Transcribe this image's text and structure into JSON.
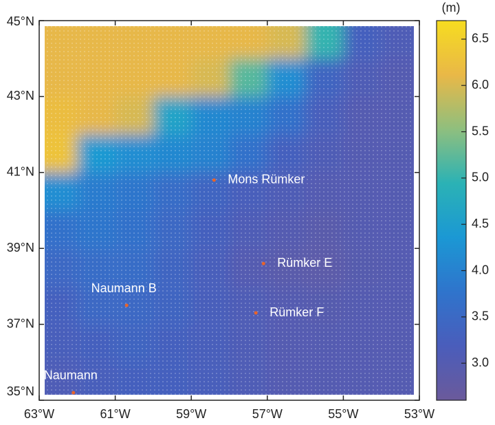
{
  "chart_data": {
    "type": "heatmap",
    "xlim": [
      -63,
      -53
    ],
    "ylim": [
      35,
      45
    ],
    "xticks": [
      {
        "value": -63,
        "label": "63°W"
      },
      {
        "value": -61,
        "label": "61°W"
      },
      {
        "value": -59,
        "label": "59°W"
      },
      {
        "value": -57,
        "label": "57°W"
      },
      {
        "value": -55,
        "label": "55°W"
      },
      {
        "value": -53,
        "label": "53°W"
      }
    ],
    "yticks": [
      {
        "value": 35,
        "label": "35°N"
      },
      {
        "value": 37,
        "label": "37°N"
      },
      {
        "value": 39,
        "label": "39°N"
      },
      {
        "value": 41,
        "label": "41°N"
      },
      {
        "value": 43,
        "label": "43°N"
      },
      {
        "value": 45,
        "label": "45°N"
      }
    ],
    "field": {
      "lons": [
        -62.5,
        -61.5,
        -60.5,
        -59.5,
        -58.5,
        -57.5,
        -56.5,
        -55.5,
        -54.5,
        -53.5
      ],
      "lats": [
        44.5,
        43.5,
        42.5,
        41.5,
        40.5,
        39.5,
        38.5,
        37.5,
        36.5,
        35.5
      ],
      "values": [
        [
          6.1,
          6.1,
          6.1,
          6.1,
          6.1,
          6.1,
          6.0,
          5.0,
          3.3,
          3.1
        ],
        [
          6.1,
          6.1,
          6.1,
          6.1,
          6.0,
          5.2,
          4.2,
          3.4,
          3.1,
          3.0
        ],
        [
          6.2,
          6.1,
          6.0,
          4.6,
          4.1,
          4.0,
          3.7,
          3.2,
          3.0,
          3.0
        ],
        [
          6.3,
          4.4,
          4.2,
          4.1,
          4.0,
          3.7,
          3.3,
          3.1,
          3.0,
          3.0
        ],
        [
          4.2,
          3.9,
          3.8,
          3.6,
          3.4,
          3.2,
          3.1,
          3.0,
          3.0,
          3.0
        ],
        [
          3.7,
          3.8,
          3.7,
          3.5,
          3.3,
          3.1,
          3.0,
          2.9,
          3.0,
          3.0
        ],
        [
          3.5,
          3.6,
          3.6,
          3.4,
          3.2,
          3.0,
          2.9,
          2.85,
          2.95,
          3.0
        ],
        [
          3.3,
          3.5,
          3.5,
          3.4,
          3.2,
          3.1,
          3.0,
          2.95,
          3.0,
          3.0
        ],
        [
          3.2,
          3.3,
          3.4,
          3.3,
          3.2,
          3.1,
          3.0,
          3.0,
          3.0,
          3.0
        ],
        [
          3.1,
          3.2,
          3.3,
          3.3,
          3.2,
          3.1,
          3.0,
          3.0,
          3.0,
          3.0
        ]
      ]
    },
    "colormap": [
      "#6b5a9b",
      "#4a5dbb",
      "#2f74cc",
      "#1b98d4",
      "#2bb2b5",
      "#8fbf7e",
      "#e9b847",
      "#f6dc20"
    ],
    "clim": [
      2.6,
      6.7
    ],
    "colorbar_label": "(m)",
    "colorbar_ticks": [
      {
        "value": 3,
        "label": "3.0"
      },
      {
        "value": 3.5,
        "label": "3.5"
      },
      {
        "value": 4,
        "label": "4.0"
      },
      {
        "value": 4.5,
        "label": "4.5"
      },
      {
        "value": 5,
        "label": "5.0"
      },
      {
        "value": 5.5,
        "label": "5.5"
      },
      {
        "value": 6,
        "label": "6.0"
      },
      {
        "value": 6.5,
        "label": "6.5"
      }
    ],
    "sites": [
      {
        "name": "Mons Rümker",
        "lon": -58.4,
        "lat": 40.8,
        "label_position": "right"
      },
      {
        "name": "Rümker E",
        "lon": -57.1,
        "lat": 38.6,
        "label_position": "right"
      },
      {
        "name": "Rümker F",
        "lon": -57.3,
        "lat": 37.3,
        "label_position": "right"
      },
      {
        "name": "Naumann B",
        "lon": -60.7,
        "lat": 37.5,
        "label_position": "above"
      },
      {
        "name": "Naumann",
        "lon": -62.1,
        "lat": 35.2,
        "label_position": "above"
      }
    ],
    "site_color": "#e8642a"
  }
}
